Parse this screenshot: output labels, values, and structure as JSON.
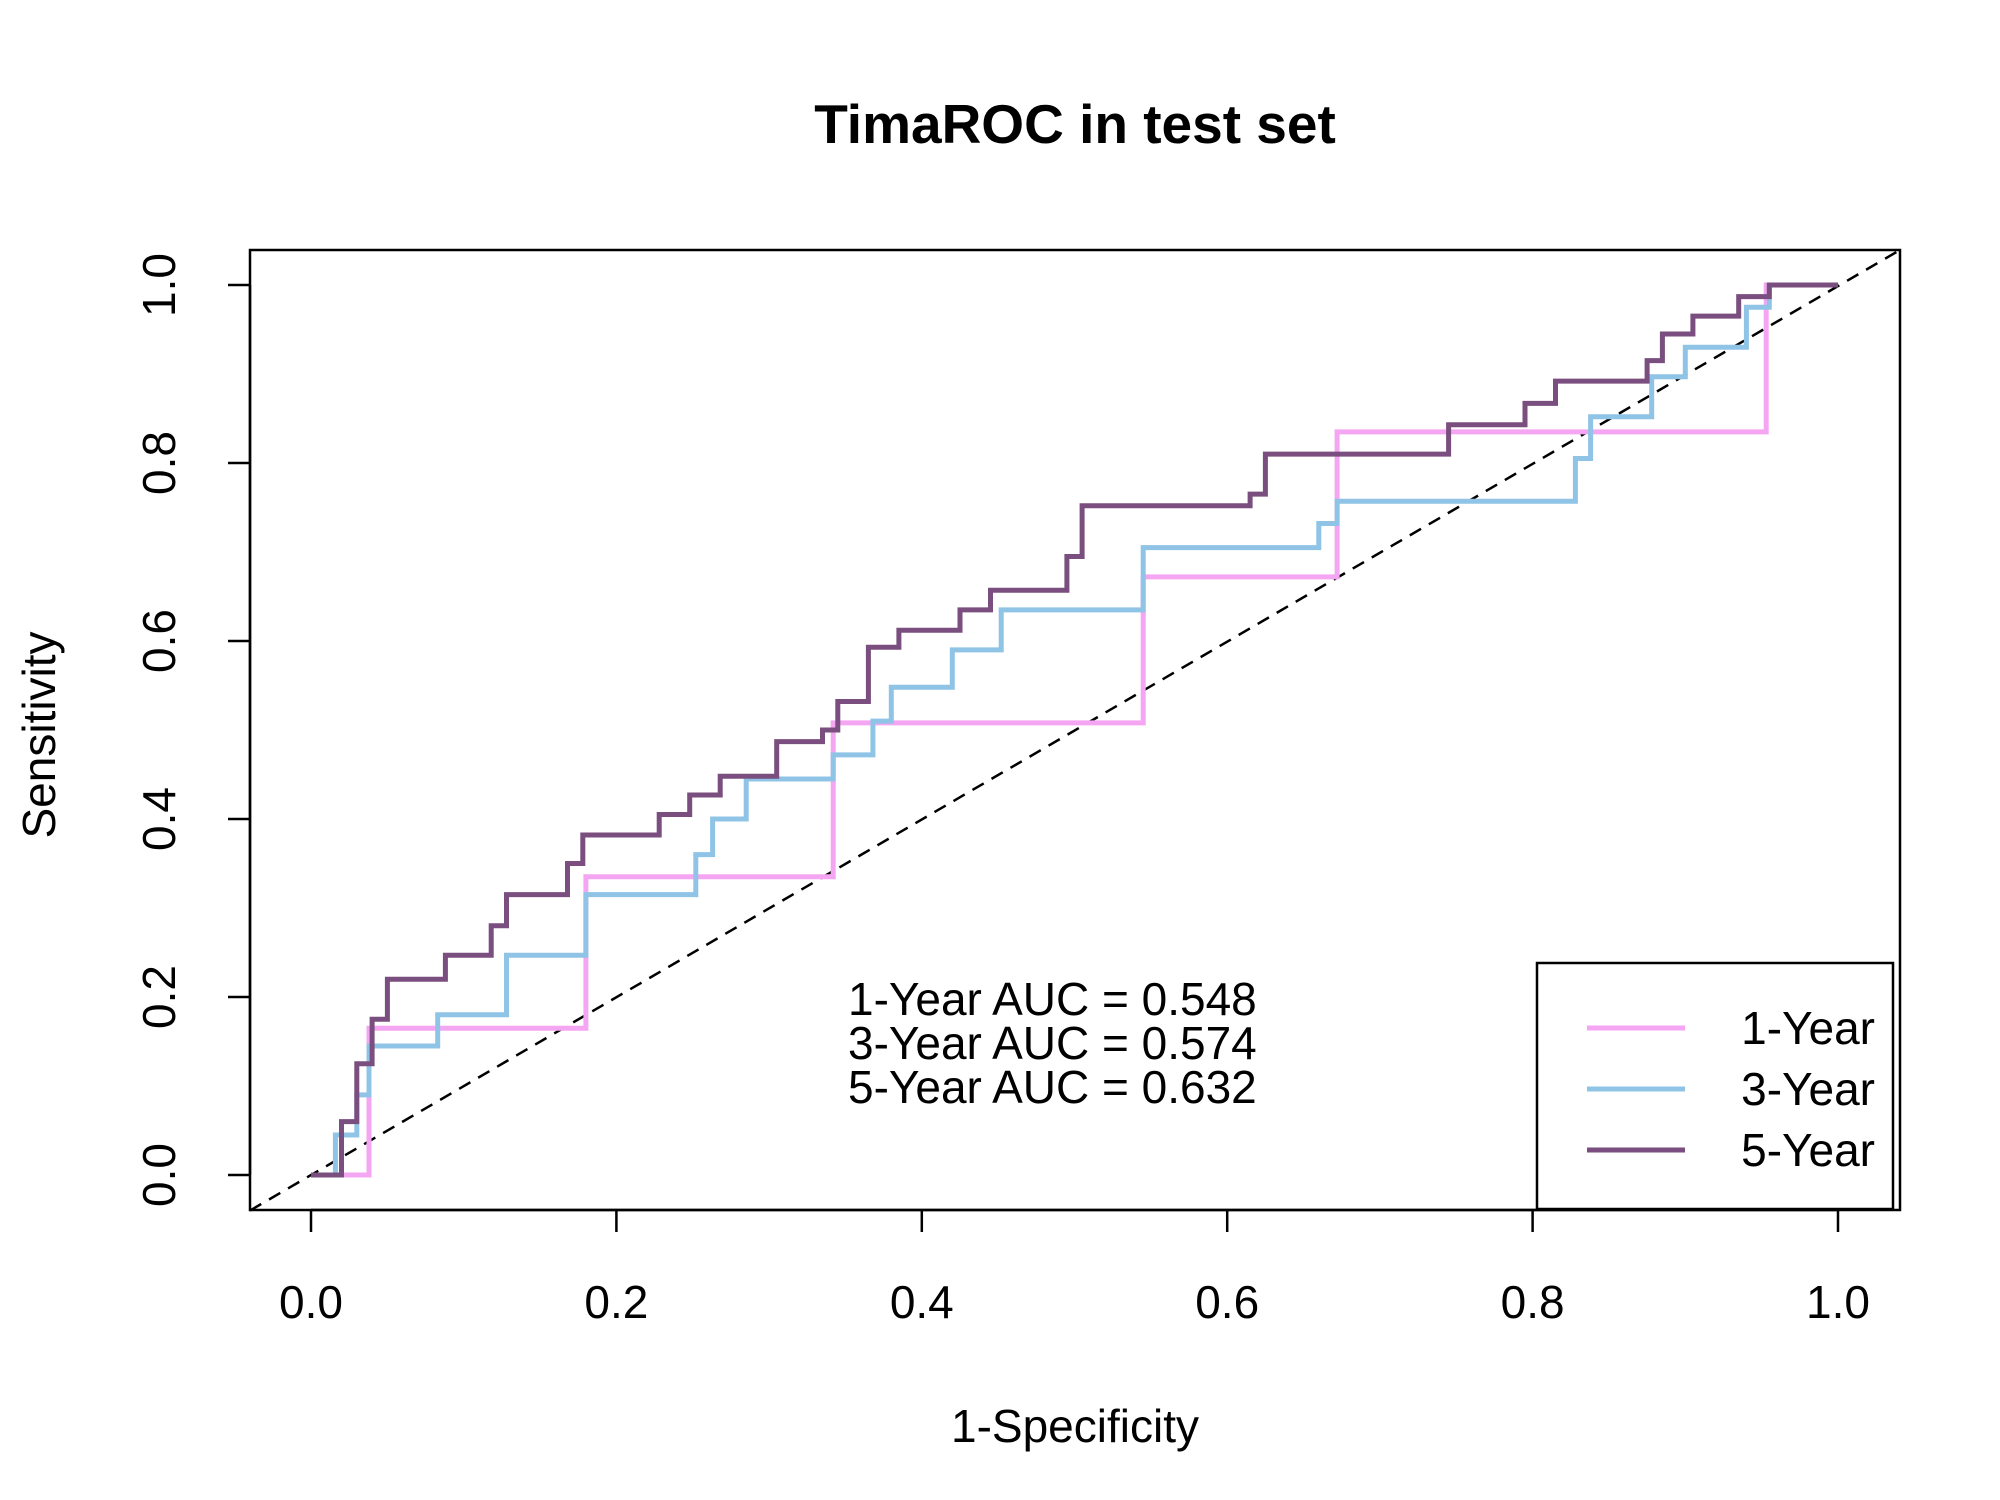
{
  "chart_data": {
    "type": "line",
    "title": "TimaROC in test set",
    "xlabel": "1-Specificity",
    "ylabel": "Sensitivity",
    "xlim": [
      0,
      1
    ],
    "ylim": [
      0,
      1
    ],
    "x_ticks": [
      "0.0",
      "0.2",
      "0.4",
      "0.6",
      "0.8",
      "1.0"
    ],
    "y_ticks": [
      "0.0",
      "0.2",
      "0.4",
      "0.6",
      "0.8",
      "1.0"
    ],
    "grid": false,
    "reference_line": "diagonal dashed",
    "legend_position": "bottom-right",
    "auc_labels": [
      "1-Year AUC = 0.548",
      "3-Year AUC = 0.574",
      "5-Year AUC = 0.632"
    ],
    "series": [
      {
        "name": "1-Year",
        "color": "#f5a6f2",
        "points": [
          [
            0,
            0
          ],
          [
            0.038,
            0
          ],
          [
            0.038,
            0.165
          ],
          [
            0.18,
            0.165
          ],
          [
            0.18,
            0.335
          ],
          [
            0.342,
            0.335
          ],
          [
            0.342,
            0.508
          ],
          [
            0.545,
            0.508
          ],
          [
            0.545,
            0.672
          ],
          [
            0.672,
            0.672
          ],
          [
            0.672,
            0.835
          ],
          [
            0.953,
            0.835
          ],
          [
            0.953,
            1.0
          ],
          [
            1.0,
            1.0
          ]
        ]
      },
      {
        "name": "3-Year",
        "color": "#8fc4e6",
        "points": [
          [
            0,
            0
          ],
          [
            0.016,
            0
          ],
          [
            0.016,
            0.045
          ],
          [
            0.03,
            0.045
          ],
          [
            0.03,
            0.09
          ],
          [
            0.038,
            0.09
          ],
          [
            0.038,
            0.145
          ],
          [
            0.083,
            0.145
          ],
          [
            0.083,
            0.18
          ],
          [
            0.128,
            0.18
          ],
          [
            0.128,
            0.247
          ],
          [
            0.18,
            0.247
          ],
          [
            0.18,
            0.315
          ],
          [
            0.252,
            0.315
          ],
          [
            0.252,
            0.36
          ],
          [
            0.263,
            0.36
          ],
          [
            0.263,
            0.4
          ],
          [
            0.285,
            0.4
          ],
          [
            0.285,
            0.445
          ],
          [
            0.342,
            0.445
          ],
          [
            0.342,
            0.472
          ],
          [
            0.368,
            0.472
          ],
          [
            0.368,
            0.51
          ],
          [
            0.38,
            0.51
          ],
          [
            0.38,
            0.548
          ],
          [
            0.42,
            0.548
          ],
          [
            0.42,
            0.59
          ],
          [
            0.452,
            0.59
          ],
          [
            0.452,
            0.635
          ],
          [
            0.545,
            0.635
          ],
          [
            0.545,
            0.705
          ],
          [
            0.66,
            0.705
          ],
          [
            0.66,
            0.732
          ],
          [
            0.672,
            0.732
          ],
          [
            0.672,
            0.757
          ],
          [
            0.828,
            0.757
          ],
          [
            0.828,
            0.805
          ],
          [
            0.838,
            0.805
          ],
          [
            0.838,
            0.852
          ],
          [
            0.878,
            0.852
          ],
          [
            0.878,
            0.897
          ],
          [
            0.9,
            0.897
          ],
          [
            0.9,
            0.93
          ],
          [
            0.94,
            0.93
          ],
          [
            0.94,
            0.975
          ],
          [
            0.955,
            0.975
          ],
          [
            0.955,
            1.0
          ],
          [
            1.0,
            1.0
          ]
        ]
      },
      {
        "name": "5-Year",
        "color": "#7a4e7e",
        "points": [
          [
            0,
            0
          ],
          [
            0.02,
            0
          ],
          [
            0.02,
            0.06
          ],
          [
            0.03,
            0.06
          ],
          [
            0.03,
            0.125
          ],
          [
            0.04,
            0.125
          ],
          [
            0.04,
            0.175
          ],
          [
            0.05,
            0.175
          ],
          [
            0.05,
            0.22
          ],
          [
            0.088,
            0.22
          ],
          [
            0.088,
            0.247
          ],
          [
            0.118,
            0.247
          ],
          [
            0.118,
            0.28
          ],
          [
            0.128,
            0.28
          ],
          [
            0.128,
            0.315
          ],
          [
            0.168,
            0.315
          ],
          [
            0.168,
            0.35
          ],
          [
            0.178,
            0.35
          ],
          [
            0.178,
            0.382
          ],
          [
            0.228,
            0.382
          ],
          [
            0.228,
            0.405
          ],
          [
            0.248,
            0.405
          ],
          [
            0.248,
            0.427
          ],
          [
            0.268,
            0.427
          ],
          [
            0.268,
            0.448
          ],
          [
            0.305,
            0.448
          ],
          [
            0.305,
            0.487
          ],
          [
            0.335,
            0.487
          ],
          [
            0.335,
            0.5
          ],
          [
            0.345,
            0.5
          ],
          [
            0.345,
            0.532
          ],
          [
            0.365,
            0.532
          ],
          [
            0.365,
            0.593
          ],
          [
            0.385,
            0.593
          ],
          [
            0.385,
            0.612
          ],
          [
            0.425,
            0.612
          ],
          [
            0.425,
            0.635
          ],
          [
            0.445,
            0.635
          ],
          [
            0.445,
            0.657
          ],
          [
            0.495,
            0.657
          ],
          [
            0.495,
            0.695
          ],
          [
            0.505,
            0.695
          ],
          [
            0.505,
            0.752
          ],
          [
            0.615,
            0.752
          ],
          [
            0.615,
            0.765
          ],
          [
            0.625,
            0.765
          ],
          [
            0.625,
            0.81
          ],
          [
            0.745,
            0.81
          ],
          [
            0.745,
            0.843
          ],
          [
            0.795,
            0.843
          ],
          [
            0.795,
            0.867
          ],
          [
            0.815,
            0.867
          ],
          [
            0.815,
            0.892
          ],
          [
            0.875,
            0.892
          ],
          [
            0.875,
            0.915
          ],
          [
            0.885,
            0.915
          ],
          [
            0.885,
            0.945
          ],
          [
            0.905,
            0.945
          ],
          [
            0.905,
            0.965
          ],
          [
            0.935,
            0.965
          ],
          [
            0.935,
            0.987
          ],
          [
            0.955,
            0.987
          ],
          [
            0.955,
            1.0
          ],
          [
            1.0,
            1.0
          ]
        ]
      }
    ]
  }
}
